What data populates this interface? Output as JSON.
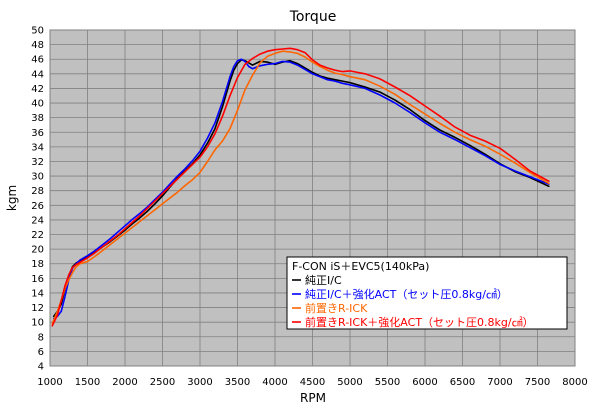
{
  "chart_data": {
    "type": "line",
    "title": "Torque",
    "xlabel": "RPM",
    "ylabel": "kgm",
    "xlim": [
      1000,
      8000
    ],
    "ylim": [
      4,
      50
    ],
    "x_ticks": [
      1000,
      1500,
      2000,
      2500,
      3000,
      3500,
      4000,
      4500,
      5000,
      5500,
      6000,
      6500,
      7000,
      7500,
      8000
    ],
    "y_ticks": [
      4,
      6,
      8,
      10,
      12,
      14,
      16,
      18,
      20,
      22,
      24,
      26,
      28,
      30,
      32,
      34,
      36,
      38,
      40,
      42,
      44,
      46,
      48,
      50
    ],
    "grid": true,
    "background": "#c0c0c0",
    "legend": {
      "position": "bottom-right",
      "title": "F-CON iS＋EVC5(140kPa)"
    },
    "series": [
      {
        "name": "純正I/C",
        "color": "#000000",
        "points": [
          [
            1050,
            10.8
          ],
          [
            1100,
            11.5
          ],
          [
            1150,
            12.5
          ],
          [
            1200,
            14.5
          ],
          [
            1250,
            16.3
          ],
          [
            1300,
            17.6
          ],
          [
            1350,
            18.1
          ],
          [
            1400,
            18.4
          ],
          [
            1500,
            19.0
          ],
          [
            1600,
            19.6
          ],
          [
            1700,
            20.3
          ],
          [
            1800,
            21.0
          ],
          [
            1900,
            21.8
          ],
          [
            2000,
            22.6
          ],
          [
            2100,
            23.5
          ],
          [
            2200,
            24.3
          ],
          [
            2300,
            25.2
          ],
          [
            2400,
            26.2
          ],
          [
            2500,
            27.3
          ],
          [
            2600,
            28.5
          ],
          [
            2700,
            29.7
          ],
          [
            2800,
            30.7
          ],
          [
            2900,
            31.7
          ],
          [
            3000,
            32.9
          ],
          [
            3100,
            34.5
          ],
          [
            3200,
            36.5
          ],
          [
            3300,
            39.5
          ],
          [
            3400,
            43.0
          ],
          [
            3450,
            44.5
          ],
          [
            3500,
            45.4
          ],
          [
            3550,
            45.9
          ],
          [
            3600,
            45.8
          ],
          [
            3700,
            45.2
          ],
          [
            3800,
            45.7
          ],
          [
            3900,
            45.6
          ],
          [
            4000,
            45.3
          ],
          [
            4100,
            45.6
          ],
          [
            4200,
            45.8
          ],
          [
            4300,
            45.4
          ],
          [
            4400,
            44.8
          ],
          [
            4500,
            44.2
          ],
          [
            4600,
            43.7
          ],
          [
            4700,
            43.4
          ],
          [
            4800,
            43.2
          ],
          [
            4900,
            43.0
          ],
          [
            5000,
            42.8
          ],
          [
            5200,
            42.2
          ],
          [
            5400,
            41.5
          ],
          [
            5600,
            40.4
          ],
          [
            5800,
            39.1
          ],
          [
            6000,
            37.6
          ],
          [
            6200,
            36.3
          ],
          [
            6400,
            35.3
          ],
          [
            6600,
            34.2
          ],
          [
            6800,
            33.0
          ],
          [
            7000,
            31.7
          ],
          [
            7200,
            30.6
          ],
          [
            7400,
            29.8
          ],
          [
            7650,
            28.6
          ]
        ]
      },
      {
        "name": "純正I/C＋強化ACT（セット圧0.8kg/㎠）",
        "color": "#0000ff",
        "points": [
          [
            1050,
            10.5
          ],
          [
            1100,
            10.8
          ],
          [
            1150,
            11.5
          ],
          [
            1200,
            13.5
          ],
          [
            1250,
            15.8
          ],
          [
            1300,
            17.4
          ],
          [
            1350,
            18.0
          ],
          [
            1400,
            18.5
          ],
          [
            1500,
            19.1
          ],
          [
            1600,
            19.8
          ],
          [
            1700,
            20.6
          ],
          [
            1800,
            21.4
          ],
          [
            1900,
            22.3
          ],
          [
            2000,
            23.2
          ],
          [
            2100,
            24.1
          ],
          [
            2200,
            24.9
          ],
          [
            2300,
            25.8
          ],
          [
            2400,
            26.8
          ],
          [
            2500,
            27.8
          ],
          [
            2600,
            28.9
          ],
          [
            2700,
            30.0
          ],
          [
            2800,
            31.0
          ],
          [
            2900,
            32.1
          ],
          [
            3000,
            33.4
          ],
          [
            3100,
            35.2
          ],
          [
            3200,
            37.3
          ],
          [
            3300,
            40.2
          ],
          [
            3400,
            43.6
          ],
          [
            3450,
            45.0
          ],
          [
            3500,
            45.8
          ],
          [
            3550,
            46.0
          ],
          [
            3600,
            45.7
          ],
          [
            3650,
            45.0
          ],
          [
            3700,
            44.7
          ],
          [
            3800,
            45.1
          ],
          [
            3900,
            45.3
          ],
          [
            4000,
            45.4
          ],
          [
            4100,
            45.7
          ],
          [
            4200,
            45.6
          ],
          [
            4300,
            45.2
          ],
          [
            4400,
            44.6
          ],
          [
            4500,
            44.0
          ],
          [
            4600,
            43.6
          ],
          [
            4700,
            43.2
          ],
          [
            4800,
            43.0
          ],
          [
            4900,
            42.7
          ],
          [
            5000,
            42.5
          ],
          [
            5200,
            42.0
          ],
          [
            5400,
            41.1
          ],
          [
            5600,
            40.0
          ],
          [
            5800,
            38.7
          ],
          [
            6000,
            37.3
          ],
          [
            6200,
            36.0
          ],
          [
            6400,
            35.0
          ],
          [
            6600,
            33.9
          ],
          [
            6800,
            32.8
          ],
          [
            7000,
            31.6
          ],
          [
            7200,
            30.7
          ],
          [
            7400,
            29.9
          ],
          [
            7650,
            28.9
          ]
        ]
      },
      {
        "name": "前置きR-ICK",
        "color": "#ff6600",
        "points": [
          [
            1030,
            9.8
          ],
          [
            1100,
            11.5
          ],
          [
            1150,
            13.0
          ],
          [
            1200,
            14.6
          ],
          [
            1250,
            15.8
          ],
          [
            1300,
            16.8
          ],
          [
            1350,
            17.6
          ],
          [
            1400,
            18.0
          ],
          [
            1500,
            18.3
          ],
          [
            1600,
            19.0
          ],
          [
            1700,
            19.8
          ],
          [
            1800,
            20.6
          ],
          [
            1900,
            21.4
          ],
          [
            2000,
            22.2
          ],
          [
            2100,
            23.0
          ],
          [
            2200,
            23.8
          ],
          [
            2300,
            24.6
          ],
          [
            2400,
            25.4
          ],
          [
            2500,
            26.2
          ],
          [
            2600,
            27.0
          ],
          [
            2700,
            27.8
          ],
          [
            2800,
            28.7
          ],
          [
            2900,
            29.5
          ],
          [
            3000,
            30.5
          ],
          [
            3100,
            32.0
          ],
          [
            3200,
            33.6
          ],
          [
            3300,
            34.8
          ],
          [
            3400,
            36.5
          ],
          [
            3500,
            39.0
          ],
          [
            3600,
            41.8
          ],
          [
            3700,
            43.8
          ],
          [
            3800,
            45.5
          ],
          [
            3900,
            46.4
          ],
          [
            4000,
            46.8
          ],
          [
            4100,
            47.1
          ],
          [
            4200,
            47.0
          ],
          [
            4300,
            46.8
          ],
          [
            4400,
            46.3
          ],
          [
            4500,
            45.6
          ],
          [
            4600,
            45.0
          ],
          [
            4700,
            44.5
          ],
          [
            4800,
            44.1
          ],
          [
            4900,
            43.9
          ],
          [
            5000,
            43.6
          ],
          [
            5200,
            43.2
          ],
          [
            5400,
            42.3
          ],
          [
            5600,
            41.2
          ],
          [
            5800,
            39.8
          ],
          [
            6000,
            38.5
          ],
          [
            6200,
            37.2
          ],
          [
            6400,
            36.0
          ],
          [
            6600,
            35.0
          ],
          [
            6800,
            34.1
          ],
          [
            7000,
            33.0
          ],
          [
            7200,
            31.8
          ],
          [
            7400,
            30.5
          ],
          [
            7650,
            29.0
          ]
        ]
      },
      {
        "name": "前置きR-ICK＋強化ACT（セット圧0.8kg/㎠）",
        "color": "#ff0000",
        "points": [
          [
            1030,
            9.5
          ],
          [
            1100,
            11.0
          ],
          [
            1150,
            13.0
          ],
          [
            1200,
            15.0
          ],
          [
            1250,
            16.5
          ],
          [
            1300,
            17.5
          ],
          [
            1350,
            17.9
          ],
          [
            1400,
            18.2
          ],
          [
            1500,
            18.8
          ],
          [
            1600,
            19.5
          ],
          [
            1700,
            20.3
          ],
          [
            1800,
            21.1
          ],
          [
            1900,
            21.9
          ],
          [
            2000,
            22.8
          ],
          [
            2100,
            23.7
          ],
          [
            2200,
            24.6
          ],
          [
            2300,
            25.6
          ],
          [
            2400,
            26.6
          ],
          [
            2500,
            27.6
          ],
          [
            2600,
            28.6
          ],
          [
            2700,
            29.6
          ],
          [
            2800,
            30.6
          ],
          [
            2900,
            31.6
          ],
          [
            3000,
            32.6
          ],
          [
            3100,
            34.0
          ],
          [
            3200,
            35.8
          ],
          [
            3300,
            38.2
          ],
          [
            3400,
            41.0
          ],
          [
            3500,
            43.5
          ],
          [
            3600,
            45.3
          ],
          [
            3700,
            46.1
          ],
          [
            3800,
            46.7
          ],
          [
            3900,
            47.1
          ],
          [
            4000,
            47.3
          ],
          [
            4100,
            47.4
          ],
          [
            4200,
            47.5
          ],
          [
            4300,
            47.3
          ],
          [
            4400,
            46.9
          ],
          [
            4500,
            45.9
          ],
          [
            4600,
            45.2
          ],
          [
            4700,
            44.8
          ],
          [
            4800,
            44.5
          ],
          [
            4900,
            44.3
          ],
          [
            5000,
            44.4
          ],
          [
            5100,
            44.2
          ],
          [
            5200,
            44.0
          ],
          [
            5400,
            43.3
          ],
          [
            5600,
            42.2
          ],
          [
            5800,
            41.0
          ],
          [
            6000,
            39.6
          ],
          [
            6200,
            38.2
          ],
          [
            6400,
            36.7
          ],
          [
            6600,
            35.6
          ],
          [
            6800,
            34.8
          ],
          [
            7000,
            33.8
          ],
          [
            7200,
            32.3
          ],
          [
            7400,
            30.7
          ],
          [
            7650,
            29.3
          ]
        ]
      }
    ]
  }
}
